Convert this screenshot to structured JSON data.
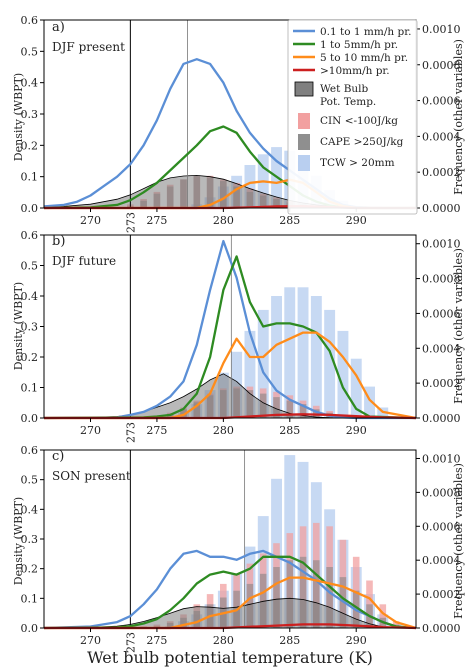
{
  "figure": {
    "xlabel": "Wet bulb potential temperature (K)",
    "ylabel_left": "Density (WBPT)",
    "ylabel_right": "Frequency (other variables)",
    "x_ticks": [
      "270",
      "275",
      "280",
      "285",
      "290"
    ],
    "x_marker": "273",
    "y_left_ticks": [
      "0.0",
      "0.1",
      "0.2",
      "0.3",
      "0.4",
      "0.5",
      "0.6"
    ],
    "y_right_ticks": [
      "0.0000",
      "0.0002",
      "0.0004",
      "0.0006",
      "0.0008",
      "0.0010"
    ]
  },
  "legend": {
    "lines": [
      {
        "label": "0.1 to 1 mm/h pr.",
        "color": "#5b8fd6"
      },
      {
        "label": "1 to 5mm/h pr.",
        "color": "#2e8b22"
      },
      {
        "label": "5 to 10 mm/h pr.",
        "color": "#ff8c1a"
      },
      {
        "label": ">10mm/h pr.",
        "color": "#cc1f1f"
      }
    ],
    "patches": [
      {
        "label1": "Wet Bulb",
        "label2": "Pot. Temp.",
        "color": "#808080"
      },
      {
        "label1": "CIN <-100J/kg",
        "label2": "",
        "color": "#f2a0a0"
      },
      {
        "label1": "CAPE >250J/kg",
        "label2": "",
        "color": "#8f8f8f"
      },
      {
        "label1": "TCW > 20mm",
        "label2": "",
        "color": "#b9cff0"
      }
    ]
  },
  "chart_data": [
    {
      "type": "line",
      "panel_letter": "a)",
      "title": "DJF present",
      "xlim": [
        266.5,
        294.5
      ],
      "ylim": [
        0,
        0.6
      ],
      "ylim_right": [
        0,
        0.00105
      ],
      "vlines": [
        273,
        277.3
      ],
      "wbpt_density": {
        "x": [
          266.5,
          268,
          270,
          272,
          273,
          274,
          275,
          276,
          277,
          278,
          279,
          280,
          281,
          282,
          283,
          284,
          285,
          286,
          287,
          288,
          289,
          290,
          291,
          292,
          294.5
        ],
        "values": [
          0.002,
          0.005,
          0.012,
          0.028,
          0.042,
          0.062,
          0.082,
          0.096,
          0.102,
          0.104,
          0.1,
          0.092,
          0.078,
          0.062,
          0.048,
          0.035,
          0.024,
          0.016,
          0.01,
          0.006,
          0.003,
          0.001,
          0,
          0,
          0
        ]
      },
      "series": [
        {
          "name": "0.1 to 1 mm/h pr.",
          "x": [
            266.5,
            268,
            269,
            270,
            271,
            272,
            273,
            274,
            275,
            276,
            277,
            278,
            279,
            280,
            281,
            282,
            283,
            284,
            285,
            286,
            287,
            288,
            289,
            290,
            291,
            292,
            294.5
          ],
          "values": [
            0.005,
            0.01,
            0.02,
            0.04,
            0.07,
            0.1,
            0.14,
            0.2,
            0.28,
            0.38,
            0.46,
            0.475,
            0.46,
            0.4,
            0.31,
            0.24,
            0.19,
            0.15,
            0.12,
            0.09,
            0.06,
            0.03,
            0.01,
            0.003,
            0.001,
            0,
            0
          ]
        },
        {
          "name": "1 to 5mm/h pr.",
          "x": [
            266.5,
            270,
            272,
            273,
            274,
            275,
            276,
            277,
            278,
            279,
            280,
            281,
            282,
            283,
            284,
            285,
            286,
            287,
            288,
            289,
            290,
            294.5
          ],
          "values": [
            0,
            0.002,
            0.01,
            0.025,
            0.05,
            0.08,
            0.12,
            0.16,
            0.2,
            0.245,
            0.26,
            0.24,
            0.18,
            0.13,
            0.1,
            0.07,
            0.04,
            0.02,
            0.008,
            0.002,
            0,
            0
          ]
        },
        {
          "name": "5 to 10 mm/h pr.",
          "x": [
            266.5,
            278,
            279,
            280,
            281,
            282,
            283,
            284,
            285,
            286,
            287,
            288,
            289,
            290,
            294.5
          ],
          "values": [
            0,
            0,
            0.01,
            0.03,
            0.06,
            0.08,
            0.085,
            0.08,
            0.09,
            0.08,
            0.05,
            0.02,
            0.006,
            0,
            0
          ]
        },
        {
          "name": ">10mm/h pr.",
          "x": [
            266.5,
            280,
            282,
            284,
            286,
            288,
            290,
            294.5
          ],
          "values": [
            0,
            0,
            0.002,
            0.005,
            0.006,
            0.003,
            0,
            0
          ]
        }
      ],
      "hist_x": [
        268,
        269,
        270,
        271,
        272,
        273,
        274,
        275,
        276,
        277,
        278,
        279,
        280,
        281,
        282,
        283,
        284,
        285,
        286,
        287,
        288,
        289,
        290,
        291,
        292,
        293,
        294
      ],
      "tcw": [
        0,
        0,
        0,
        0,
        0,
        0,
        0,
        0,
        0,
        0,
        2e-05,
        6e-05,
        0.00012,
        0.00018,
        0.00024,
        0.0003,
        0.00034,
        0.00032,
        0.00026,
        0.00018,
        0.0001,
        4e-05,
        1e-05,
        0,
        0,
        0,
        0
      ],
      "cin": [
        0,
        0,
        0,
        0,
        5e-06,
        2e-05,
        5e-05,
        9e-05,
        0.00013,
        0.00016,
        0.00018,
        0.00018,
        0.00016,
        0.00014,
        0.00011,
        8e-05,
        6e-05,
        4e-05,
        2e-05,
        1e-05,
        0,
        0,
        0,
        0,
        0,
        0,
        0
      ],
      "cape": [
        0,
        0,
        0,
        0,
        0,
        1e-05,
        4e-05,
        8e-05,
        0.00012,
        0.00016,
        0.00018,
        0.00017,
        0.00015,
        0.00012,
        9e-05,
        7e-05,
        5e-05,
        3e-05,
        2e-05,
        1e-05,
        0,
        0,
        0,
        0,
        0,
        0,
        0
      ]
    },
    {
      "type": "line",
      "panel_letter": "b)",
      "title": "DJF future",
      "xlim": [
        266.5,
        294.5
      ],
      "ylim": [
        0,
        0.6
      ],
      "ylim_right": [
        0,
        0.00105
      ],
      "vlines": [
        273,
        280.6
      ],
      "wbpt_density": {
        "x": [
          266.5,
          270,
          272,
          273,
          274,
          275,
          276,
          277,
          278,
          279,
          280,
          281,
          282,
          283,
          284,
          285,
          286,
          287,
          288,
          289,
          290,
          294.5
        ],
        "values": [
          0,
          0.002,
          0.005,
          0.01,
          0.02,
          0.035,
          0.05,
          0.07,
          0.095,
          0.125,
          0.145,
          0.12,
          0.08,
          0.05,
          0.03,
          0.015,
          0.008,
          0.003,
          0.001,
          0,
          0,
          0
        ]
      },
      "series": [
        {
          "name": "0.1 to 1 mm/h pr.",
          "x": [
            266.5,
            272,
            273,
            274,
            275,
            276,
            277,
            278,
            279,
            280,
            281,
            282,
            283,
            284,
            285,
            286,
            287,
            288,
            289,
            290,
            294.5
          ],
          "values": [
            0,
            0.002,
            0.01,
            0.02,
            0.04,
            0.07,
            0.12,
            0.24,
            0.42,
            0.58,
            0.46,
            0.28,
            0.15,
            0.09,
            0.06,
            0.04,
            0.02,
            0.008,
            0.002,
            0,
            0
          ]
        },
        {
          "name": "1 to 5mm/h pr.",
          "x": [
            266.5,
            274,
            275,
            276,
            277,
            278,
            279,
            280,
            281,
            282,
            283,
            284,
            285,
            286,
            287,
            288,
            289,
            290,
            291,
            294.5
          ],
          "values": [
            0,
            0.002,
            0.005,
            0.01,
            0.03,
            0.08,
            0.2,
            0.42,
            0.53,
            0.38,
            0.3,
            0.31,
            0.31,
            0.3,
            0.28,
            0.22,
            0.1,
            0.03,
            0.005,
            0
          ]
        },
        {
          "name": "5 to 10 mm/h pr.",
          "x": [
            266.5,
            276,
            277,
            278,
            279,
            280,
            281,
            282,
            283,
            284,
            285,
            286,
            287,
            288,
            289,
            290,
            291,
            292,
            294.5
          ],
          "values": [
            0,
            0,
            0.01,
            0.04,
            0.08,
            0.18,
            0.26,
            0.2,
            0.2,
            0.24,
            0.26,
            0.28,
            0.28,
            0.25,
            0.2,
            0.14,
            0.06,
            0.02,
            0
          ]
        },
        {
          "name": ">10mm/h pr.",
          "x": [
            266.5,
            280,
            282,
            284,
            286,
            288,
            290,
            292,
            294.5
          ],
          "values": [
            0,
            0,
            0.005,
            0.01,
            0.012,
            0.01,
            0.006,
            0.002,
            0
          ]
        }
      ],
      "hist_x": [
        268,
        269,
        270,
        271,
        272,
        273,
        274,
        275,
        276,
        277,
        278,
        279,
        280,
        281,
        282,
        283,
        284,
        285,
        286,
        287,
        288,
        289,
        290,
        291,
        292,
        293,
        294
      ],
      "tcw": [
        0,
        0,
        0,
        0,
        0,
        0,
        0,
        0,
        0,
        3e-05,
        8e-05,
        0.00016,
        0.00026,
        0.00038,
        0.0005,
        0.00062,
        0.0007,
        0.00075,
        0.00075,
        0.0007,
        0.00062,
        0.0005,
        0.00034,
        0.00018,
        6e-05,
        1e-05,
        0
      ],
      "cin": [
        0,
        0,
        0,
        0,
        0,
        0,
        5e-06,
        1e-05,
        3e-05,
        6e-05,
        0.0001,
        0.00014,
        0.00017,
        0.00018,
        0.00018,
        0.00017,
        0.00015,
        0.00013,
        0.0001,
        7e-05,
        4e-05,
        2e-05,
        1e-05,
        0,
        0,
        0,
        0
      ],
      "cape": [
        0,
        0,
        0,
        0,
        0,
        0,
        0,
        5e-06,
        2e-05,
        5e-05,
        9e-05,
        0.00013,
        0.00016,
        0.00017,
        0.00016,
        0.00014,
        0.00012,
        0.0001,
        8e-05,
        5e-05,
        3e-05,
        1e-05,
        0,
        0,
        0,
        0,
        0
      ]
    },
    {
      "type": "line",
      "panel_letter": "c)",
      "title": "SON present",
      "xlim": [
        266.5,
        294.5
      ],
      "ylim": [
        0,
        0.6
      ],
      "ylim_right": [
        0,
        0.00105
      ],
      "vlines": [
        273,
        281.6
      ],
      "wbpt_density": {
        "x": [
          266.5,
          270,
          272,
          273,
          274,
          275,
          276,
          277,
          278,
          279,
          280,
          281,
          282,
          283,
          284,
          285,
          286,
          287,
          288,
          289,
          290,
          291,
          292,
          294.5
        ],
        "values": [
          0,
          0.002,
          0.006,
          0.012,
          0.022,
          0.035,
          0.05,
          0.065,
          0.072,
          0.07,
          0.066,
          0.07,
          0.08,
          0.09,
          0.097,
          0.1,
          0.096,
          0.085,
          0.07,
          0.05,
          0.03,
          0.014,
          0.004,
          0
        ]
      },
      "series": [
        {
          "name": "0.1 to 1 mm/h pr.",
          "x": [
            266.5,
            270,
            272,
            273,
            274,
            275,
            276,
            277,
            278,
            279,
            280,
            281,
            282,
            283,
            284,
            285,
            286,
            287,
            288,
            289,
            290,
            291,
            292,
            293,
            294.5
          ],
          "values": [
            0,
            0.005,
            0.02,
            0.04,
            0.08,
            0.13,
            0.2,
            0.25,
            0.26,
            0.24,
            0.24,
            0.23,
            0.25,
            0.26,
            0.24,
            0.22,
            0.19,
            0.16,
            0.12,
            0.09,
            0.06,
            0.04,
            0.02,
            0.005,
            0
          ]
        },
        {
          "name": "1 to 5mm/h pr.",
          "x": [
            266.5,
            272,
            273,
            274,
            275,
            276,
            277,
            278,
            279,
            280,
            281,
            282,
            283,
            284,
            285,
            286,
            287,
            288,
            289,
            290,
            291,
            292,
            293,
            294.5
          ],
          "values": [
            0,
            0.002,
            0.006,
            0.015,
            0.03,
            0.06,
            0.1,
            0.15,
            0.18,
            0.19,
            0.18,
            0.2,
            0.24,
            0.24,
            0.24,
            0.22,
            0.18,
            0.14,
            0.1,
            0.07,
            0.04,
            0.02,
            0.005,
            0
          ]
        },
        {
          "name": "5 to 10 mm/h pr.",
          "x": [
            266.5,
            276,
            277,
            278,
            279,
            280,
            281,
            282,
            283,
            284,
            285,
            286,
            287,
            288,
            289,
            290,
            291,
            292,
            293,
            294.5
          ],
          "values": [
            0,
            0,
            0.01,
            0.02,
            0.04,
            0.05,
            0.06,
            0.1,
            0.12,
            0.15,
            0.17,
            0.17,
            0.16,
            0.15,
            0.14,
            0.12,
            0.1,
            0.05,
            0.02,
            0
          ]
        },
        {
          "name": ">10mm/h pr.",
          "x": [
            266.5,
            280,
            282,
            284,
            286,
            288,
            290,
            292,
            294.5
          ],
          "values": [
            0,
            0,
            0.004,
            0.008,
            0.012,
            0.012,
            0.008,
            0.003,
            0
          ]
        }
      ],
      "hist_x": [
        268,
        269,
        270,
        271,
        272,
        273,
        274,
        275,
        276,
        277,
        278,
        279,
        280,
        281,
        282,
        283,
        284,
        285,
        286,
        287,
        288,
        289,
        290,
        291,
        292,
        293,
        294
      ],
      "tcw": [
        0,
        0,
        0,
        0,
        0,
        0,
        0,
        0,
        1e-05,
        4e-05,
        8e-05,
        0.00014,
        0.00022,
        0.00032,
        0.00048,
        0.00066,
        0.00088,
        0.00102,
        0.00098,
        0.00086,
        0.0007,
        0.00052,
        0.00036,
        0.0002,
        8e-05,
        2e-05,
        0
      ],
      "cin": [
        0,
        0,
        0,
        0,
        0,
        5e-06,
        1e-05,
        2e-05,
        4e-05,
        8e-05,
        0.00014,
        0.0002,
        0.00026,
        0.00032,
        0.00038,
        0.00044,
        0.0005,
        0.00056,
        0.0006,
        0.00062,
        0.0006,
        0.00052,
        0.00042,
        0.00028,
        0.00014,
        4e-05,
        0
      ],
      "cape": [
        0,
        0,
        0,
        0,
        0,
        0,
        5e-06,
        1e-05,
        3e-05,
        6e-05,
        0.0001,
        0.00014,
        0.00018,
        0.00022,
        0.00026,
        0.00032,
        0.00036,
        0.0004,
        0.00042,
        0.0004,
        0.00036,
        0.0003,
        0.00022,
        0.00014,
        6e-05,
        2e-05,
        0
      ]
    }
  ]
}
